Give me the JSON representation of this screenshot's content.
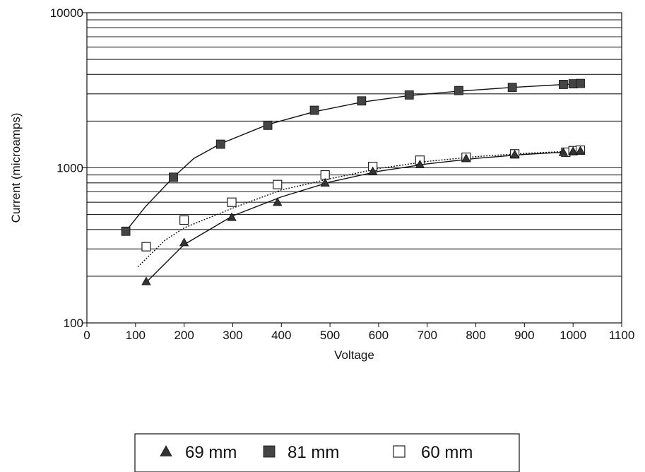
{
  "chart_data": {
    "type": "scatter",
    "title": "",
    "xlabel": "Voltage",
    "ylabel": "Current (microamps)",
    "xlim": [
      0,
      1100
    ],
    "ylim": [
      100,
      10000
    ],
    "yscale": "log",
    "grid": "horizontal",
    "x_ticks": [
      "0",
      "100",
      "200",
      "300",
      "400",
      "500",
      "600",
      "700",
      "800",
      "900",
      "1000",
      "1100"
    ],
    "y_ticks": [
      "100",
      "1000",
      "10000"
    ],
    "legend_position": "bottom",
    "series": [
      {
        "name": "69 mm",
        "marker": "triangle",
        "color": "#222222",
        "points": [
          [
            122,
            185
          ],
          [
            200,
            330
          ],
          [
            298,
            480
          ],
          [
            392,
            600
          ],
          [
            490,
            800
          ],
          [
            588,
            950
          ],
          [
            685,
            1050
          ],
          [
            780,
            1150
          ],
          [
            880,
            1220
          ],
          [
            980,
            1260
          ],
          [
            1000,
            1280
          ],
          [
            1015,
            1290
          ]
        ],
        "fit": {
          "style": "solid",
          "points": [
            [
              120,
              180
            ],
            [
              200,
              320
            ],
            [
              300,
              490
            ],
            [
              400,
              650
            ],
            [
              500,
              810
            ],
            [
              600,
              950
            ],
            [
              700,
              1060
            ],
            [
              800,
              1150
            ],
            [
              900,
              1220
            ],
            [
              1000,
              1270
            ],
            [
              1020,
              1280
            ]
          ]
        }
      },
      {
        "name": "81 mm",
        "marker": "square-filled",
        "color": "#222222",
        "points": [
          [
            80,
            390
          ],
          [
            178,
            870
          ],
          [
            275,
            1420
          ],
          [
            372,
            1880
          ],
          [
            468,
            2350
          ],
          [
            565,
            2700
          ],
          [
            663,
            2950
          ],
          [
            765,
            3150
          ],
          [
            875,
            3300
          ],
          [
            980,
            3450
          ],
          [
            1000,
            3480
          ],
          [
            1015,
            3500
          ]
        ],
        "fit": {
          "style": "solid",
          "points": [
            [
              80,
              390
            ],
            [
              120,
              560
            ],
            [
              178,
              870
            ],
            [
              220,
              1150
            ],
            [
              275,
              1430
            ],
            [
              372,
              1900
            ],
            [
              468,
              2300
            ],
            [
              565,
              2650
            ],
            [
              663,
              2920
            ],
            [
              765,
              3120
            ],
            [
              875,
              3300
            ],
            [
              1020,
              3500
            ]
          ]
        }
      },
      {
        "name": "60 mm",
        "marker": "square-open",
        "color": "#222222",
        "points": [
          [
            122,
            310
          ],
          [
            200,
            460
          ],
          [
            298,
            600
          ],
          [
            392,
            780
          ],
          [
            490,
            900
          ],
          [
            588,
            1020
          ],
          [
            685,
            1120
          ],
          [
            780,
            1170
          ],
          [
            880,
            1230
          ],
          [
            985,
            1260
          ],
          [
            1000,
            1290
          ],
          [
            1015,
            1300
          ]
        ],
        "fit": {
          "style": "dotted",
          "points": [
            [
              105,
              230
            ],
            [
              160,
              340
            ],
            [
              200,
              410
            ],
            [
              300,
              550
            ],
            [
              400,
              720
            ],
            [
              500,
              850
            ],
            [
              600,
              990
            ],
            [
              700,
              1100
            ],
            [
              800,
              1180
            ],
            [
              900,
              1240
            ],
            [
              1020,
              1290
            ]
          ]
        }
      }
    ]
  }
}
